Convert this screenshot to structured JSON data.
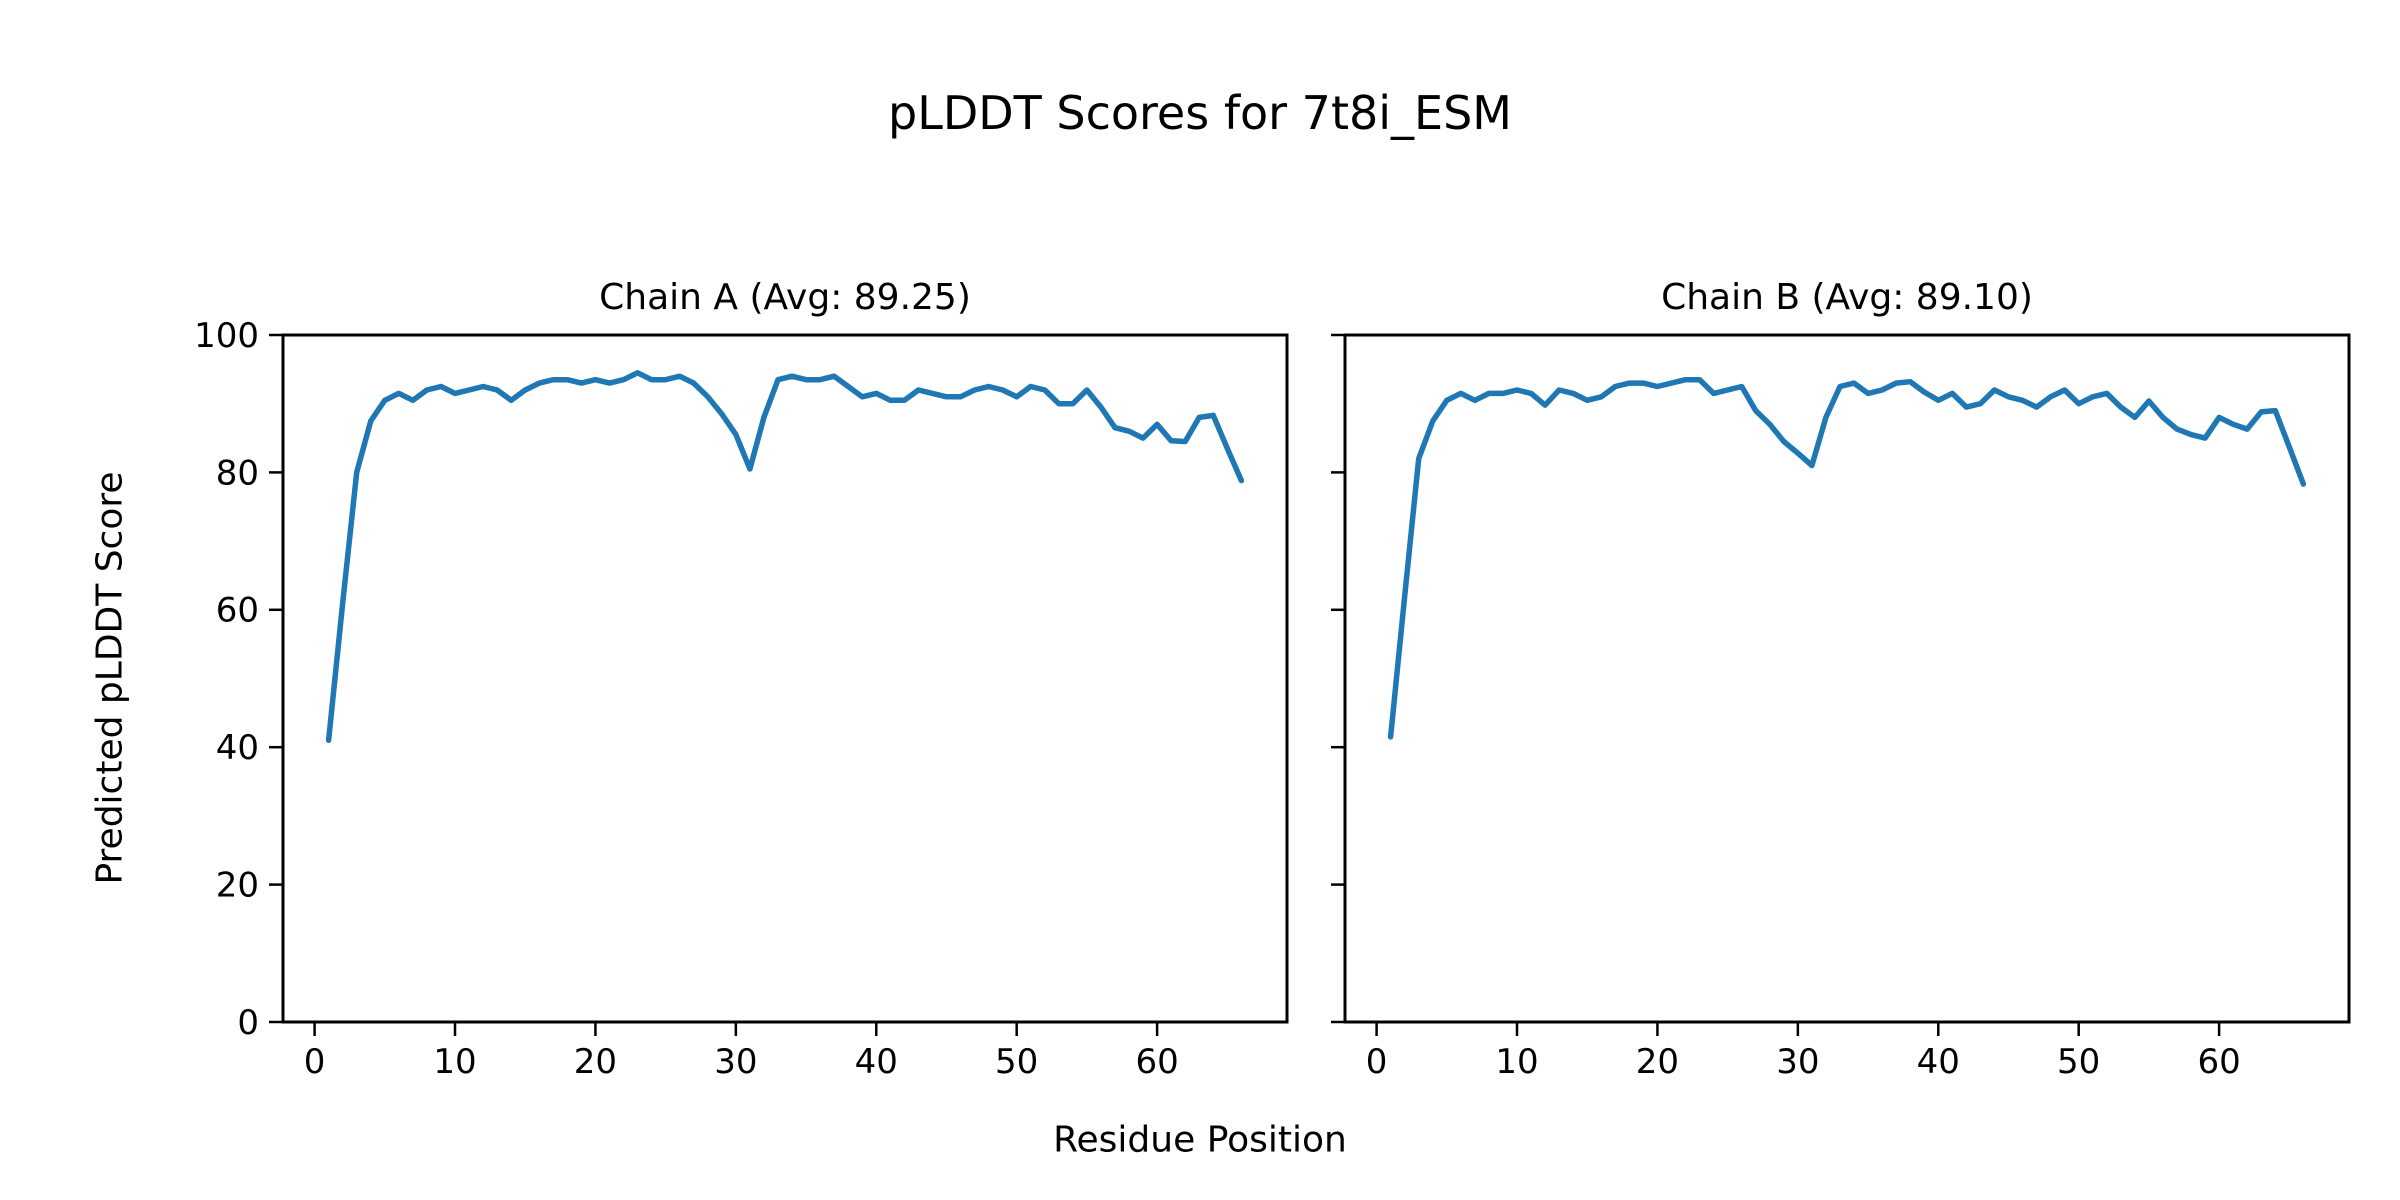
{
  "figure": {
    "suptitle": "pLDDT Scores for 7t8i_ESM",
    "xlabel": "Residue Position",
    "ylabel": "Predicted pLDDT Score",
    "background_color": "#ffffff",
    "text_color": "#000000",
    "axis_color": "#000000"
  },
  "chart_data": [
    {
      "type": "line",
      "title": "Chain A (Avg: 89.25)",
      "chain": "A",
      "average_plddt": 89.25,
      "line_color": "#1f77b4",
      "xlabel": "Residue Position",
      "ylabel": "Predicted pLDDT Score",
      "xlim": [
        -2.25,
        69.25
      ],
      "ylim": [
        0,
        100
      ],
      "xticks": [
        0,
        10,
        20,
        30,
        40,
        50,
        60
      ],
      "yticks": [
        0,
        20,
        40,
        60,
        80,
        100
      ],
      "show_y_tick_labels": true,
      "grid": false,
      "legend": "none",
      "x": [
        1,
        2,
        3,
        4,
        5,
        6,
        7,
        8,
        9,
        10,
        11,
        12,
        13,
        14,
        15,
        16,
        17,
        18,
        19,
        20,
        21,
        22,
        23,
        24,
        25,
        26,
        27,
        28,
        29,
        30,
        31,
        32,
        33,
        34,
        35,
        36,
        37,
        38,
        39,
        40,
        41,
        42,
        43,
        44,
        45,
        46,
        47,
        48,
        49,
        50,
        51,
        52,
        53,
        54,
        55,
        56,
        57,
        58,
        59,
        60,
        61,
        62,
        63,
        64,
        65,
        66
      ],
      "values": [
        41,
        61,
        80,
        87.5,
        90.5,
        91.5,
        90.5,
        92,
        92.5,
        91.5,
        92,
        92.5,
        92,
        90.5,
        92,
        93,
        93.5,
        93.5,
        93,
        93.5,
        93,
        93.5,
        94.5,
        93.5,
        93.5,
        94,
        93,
        91,
        88.5,
        85.5,
        80.5,
        88,
        93.5,
        94,
        93.5,
        93.5,
        94,
        92.5,
        91,
        91.5,
        90.5,
        90.5,
        92,
        91.5,
        91,
        91,
        92,
        92.5,
        92,
        91,
        92.5,
        92,
        90,
        90,
        92,
        89.5,
        86.5,
        86,
        85,
        87,
        84.6,
        84.5,
        88,
        88.3,
        83.5,
        78.8
      ]
    },
    {
      "type": "line",
      "title": "Chain B (Avg: 89.10)",
      "chain": "B",
      "average_plddt": 89.1,
      "line_color": "#1f77b4",
      "xlabel": "Residue Position",
      "ylabel": "Predicted pLDDT Score",
      "xlim": [
        -2.25,
        69.25
      ],
      "ylim": [
        0,
        100
      ],
      "xticks": [
        0,
        10,
        20,
        30,
        40,
        50,
        60
      ],
      "yticks": [
        0,
        20,
        40,
        60,
        80,
        100
      ],
      "show_y_tick_labels": false,
      "grid": false,
      "legend": "none",
      "x": [
        1,
        2,
        3,
        4,
        5,
        6,
        7,
        8,
        9,
        10,
        11,
        12,
        13,
        14,
        15,
        16,
        17,
        18,
        19,
        20,
        21,
        22,
        23,
        24,
        25,
        26,
        27,
        28,
        29,
        30,
        31,
        32,
        33,
        34,
        35,
        36,
        37,
        38,
        39,
        40,
        41,
        42,
        43,
        44,
        45,
        46,
        47,
        48,
        49,
        50,
        51,
        52,
        53,
        54,
        55,
        56,
        57,
        58,
        59,
        60,
        61,
        62,
        63,
        64,
        65,
        66
      ],
      "values": [
        41.5,
        62,
        82,
        87.5,
        90.5,
        91.5,
        90.5,
        91.5,
        91.5,
        92,
        91.5,
        89.8,
        92,
        91.5,
        90.5,
        91,
        92.5,
        93,
        93,
        92.5,
        93,
        93.5,
        93.5,
        91.5,
        92,
        92.5,
        89,
        87,
        84.5,
        82.8,
        81,
        88,
        92.5,
        93,
        91.5,
        92,
        93,
        93.2,
        91.7,
        90.5,
        91.5,
        89.5,
        90,
        92,
        91,
        90.5,
        89.5,
        91,
        92,
        90,
        91,
        91.5,
        89.5,
        88,
        90.4,
        88,
        86.3,
        85.5,
        85,
        88,
        87,
        86.3,
        88.8,
        89,
        83.7,
        78.3
      ]
    }
  ]
}
